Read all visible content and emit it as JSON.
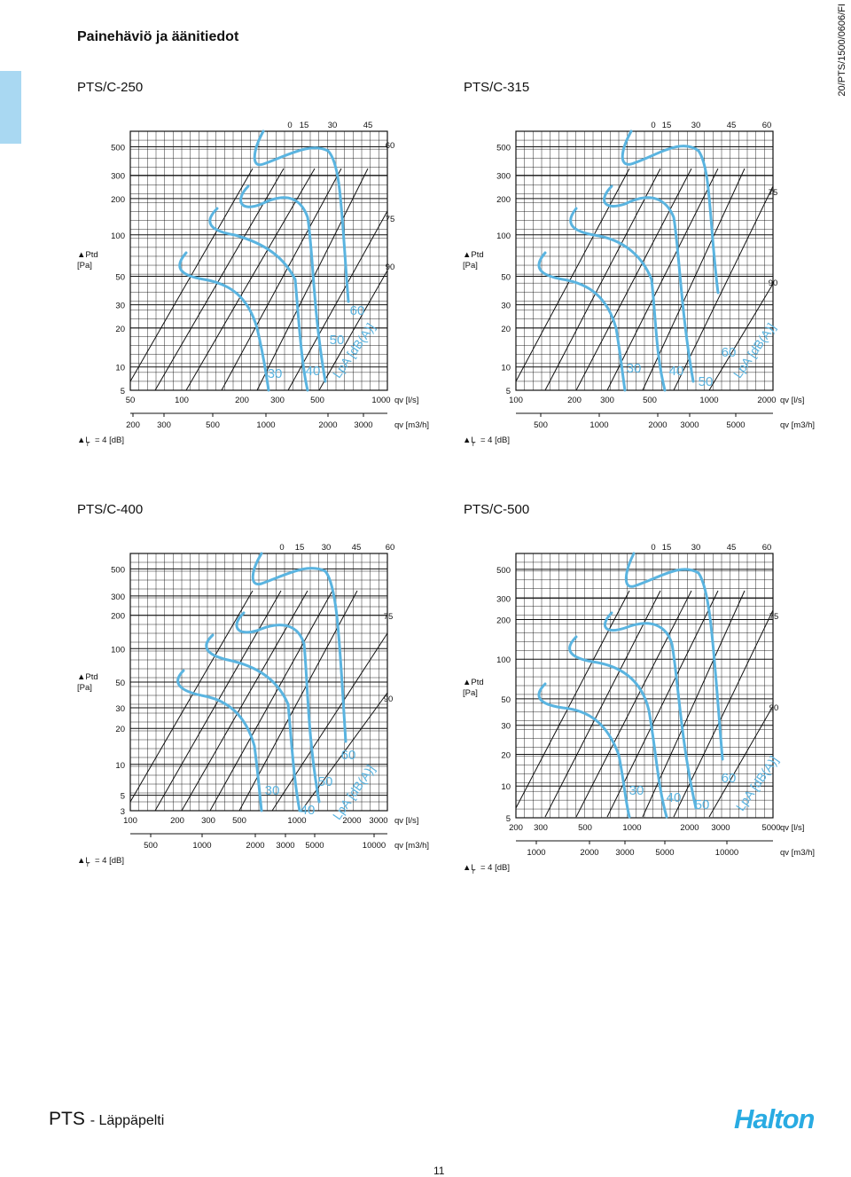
{
  "page": {
    "title": "Painehäviö ja äänitiedot",
    "doc_code": "20/PTS/1500/0606/FI",
    "footer_product": "PTS",
    "footer_subtitle": "- Läppäpelti",
    "logo_text": "Halton",
    "page_number": "11",
    "curve_color": "#5ab4e0"
  },
  "chart_data": [
    {
      "type": "line",
      "title": "PTS/C-250",
      "y_ticks": [
        "500",
        "300",
        "200",
        "100",
        "50",
        "30",
        "20",
        "10",
        "5"
      ],
      "y_label": "Ptd [Pa]",
      "x_ticks_ls": [
        "50",
        "100",
        "200",
        "300",
        "500",
        "1000"
      ],
      "x_unit_ls": "qv [l/s]",
      "x_ticks_m3h": [
        "200",
        "300",
        "500",
        "1000",
        "2000",
        "3000"
      ],
      "x_unit_m3h": "qv [m3/h]",
      "angle_labels": [
        "0",
        "15",
        "30",
        "45",
        "60",
        "75",
        "90"
      ],
      "sound_labels": [
        "30",
        "40",
        "50",
        "60"
      ],
      "sound_unit": "LpA [dB(A)]",
      "delta_label": "L",
      "delta_sub": "r",
      "delta_value": "= 4 [dB]"
    },
    {
      "type": "line",
      "title": "PTS/C-315",
      "y_ticks": [
        "500",
        "300",
        "200",
        "100",
        "50",
        "30",
        "20",
        "10",
        "5"
      ],
      "y_label": "Ptd [Pa]",
      "x_ticks_ls": [
        "100",
        "200",
        "300",
        "500",
        "1000",
        "2000"
      ],
      "x_unit_ls": "qv [l/s]",
      "x_ticks_m3h": [
        "500",
        "1000",
        "2000",
        "3000",
        "5000"
      ],
      "x_unit_m3h": "qv [m3/h]",
      "angle_labels": [
        "0",
        "15",
        "30",
        "45",
        "60",
        "75",
        "90"
      ],
      "sound_labels": [
        "30",
        "40",
        "50",
        "60"
      ],
      "sound_unit": "LpA [dB(A)]",
      "delta_label": "L",
      "delta_sub": "r",
      "delta_value": "= 4 [dB]"
    },
    {
      "type": "line",
      "title": "PTS/C-400",
      "y_ticks": [
        "500",
        "300",
        "200",
        "100",
        "50",
        "30",
        "20",
        "10",
        "5",
        "3"
      ],
      "y_label": "Ptd [Pa]",
      "x_ticks_ls": [
        "100",
        "200",
        "300",
        "500",
        "1000",
        "2000",
        "3000"
      ],
      "x_unit_ls": "qv [l/s]",
      "x_ticks_m3h": [
        "500",
        "1000",
        "2000",
        "3000",
        "5000",
        "10000"
      ],
      "x_unit_m3h": "qv [m3/h]",
      "angle_labels": [
        "0",
        "15",
        "30",
        "45",
        "60",
        "75",
        "90"
      ],
      "sound_labels": [
        "30",
        "40",
        "50",
        "60"
      ],
      "sound_unit": "LpA [dB(A)]",
      "delta_label": "L",
      "delta_sub": "r",
      "delta_value": "= 4 [dB]"
    },
    {
      "type": "line",
      "title": "PTS/C-500",
      "y_ticks": [
        "500",
        "300",
        "200",
        "100",
        "50",
        "30",
        "20",
        "10",
        "5"
      ],
      "y_label": "Ptd [Pa]",
      "x_ticks_ls": [
        "200",
        "300",
        "500",
        "1000",
        "2000",
        "3000",
        "5000"
      ],
      "x_unit_ls": "qv [l/s]",
      "x_ticks_m3h": [
        "1000",
        "2000",
        "3000",
        "5000",
        "10000"
      ],
      "x_unit_m3h": "qv [m3/h]",
      "angle_labels": [
        "0",
        "15",
        "30",
        "45",
        "60",
        "75",
        "90"
      ],
      "sound_labels": [
        "30",
        "40",
        "50",
        "60"
      ],
      "sound_unit": "LpA [dB(A)]",
      "delta_label": "L",
      "delta_sub": "r",
      "delta_value": "= 4 [dB]"
    }
  ]
}
